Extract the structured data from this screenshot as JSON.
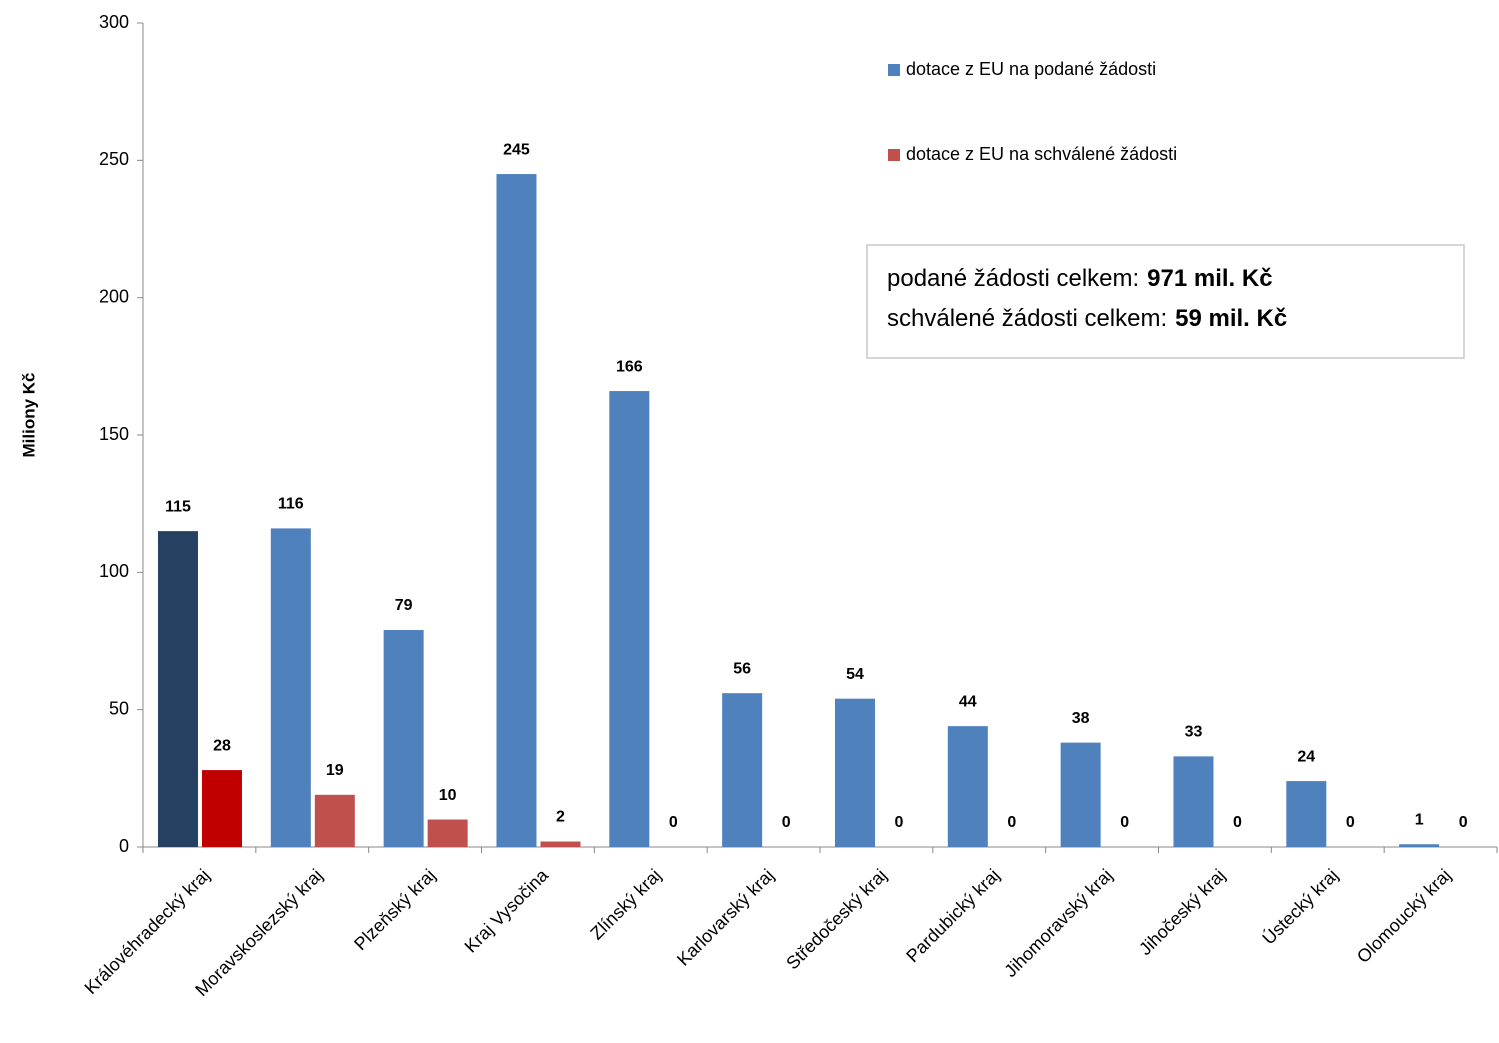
{
  "chart_data": {
    "type": "bar",
    "y_label": "Miliony Kč",
    "categories": [
      "Královéhradecký kraj",
      "Moravskoslezský kraj",
      "Plzeňský kraj",
      "Kraj Vysočina",
      "Zlínský kraj",
      "Karlovarský kraj",
      "Středočeský kraj",
      "Pardubický kraj",
      "Jihomoravský kraj",
      "Jihočeský kraj",
      "Ústecký kraj",
      "Olomoucký kraj"
    ],
    "series": [
      {
        "name": "dotace z EU na podané žádosti",
        "color": "#4f81bd",
        "colors": [
          "#264061",
          "#4f81bd",
          "#4f81bd",
          "#4f81bd",
          "#4f81bd",
          "#4f81bd",
          "#4f81bd",
          "#4f81bd",
          "#4f81bd",
          "#4f81bd",
          "#4f81bd",
          "#4f81bd"
        ],
        "values": [
          115,
          116,
          79,
          245,
          166,
          56,
          54,
          44,
          38,
          33,
          24,
          1
        ]
      },
      {
        "name": "dotace z EU na schválené žádosti",
        "color": "#c0504d",
        "colors": [
          "#c00000",
          "#c0504d",
          "#c0504d",
          "#c0504d",
          "#c0504d",
          "#c0504d",
          "#c0504d",
          "#c0504d",
          "#c0504d",
          "#c0504d",
          "#c0504d",
          "#c0504d"
        ],
        "values": [
          28,
          19,
          10,
          2,
          0,
          0,
          0,
          0,
          0,
          0,
          0,
          0
        ]
      }
    ],
    "ylim": [
      0,
      300
    ],
    "yticks": [
      0,
      50,
      100,
      150,
      200,
      250,
      300
    ],
    "annotations": [
      {
        "text": "podané žádosti celkem:",
        "bold": "971 mil. Kč"
      },
      {
        "text": "schválené žádosti celkem:",
        "bold": "59 mil. Kč"
      }
    ]
  }
}
